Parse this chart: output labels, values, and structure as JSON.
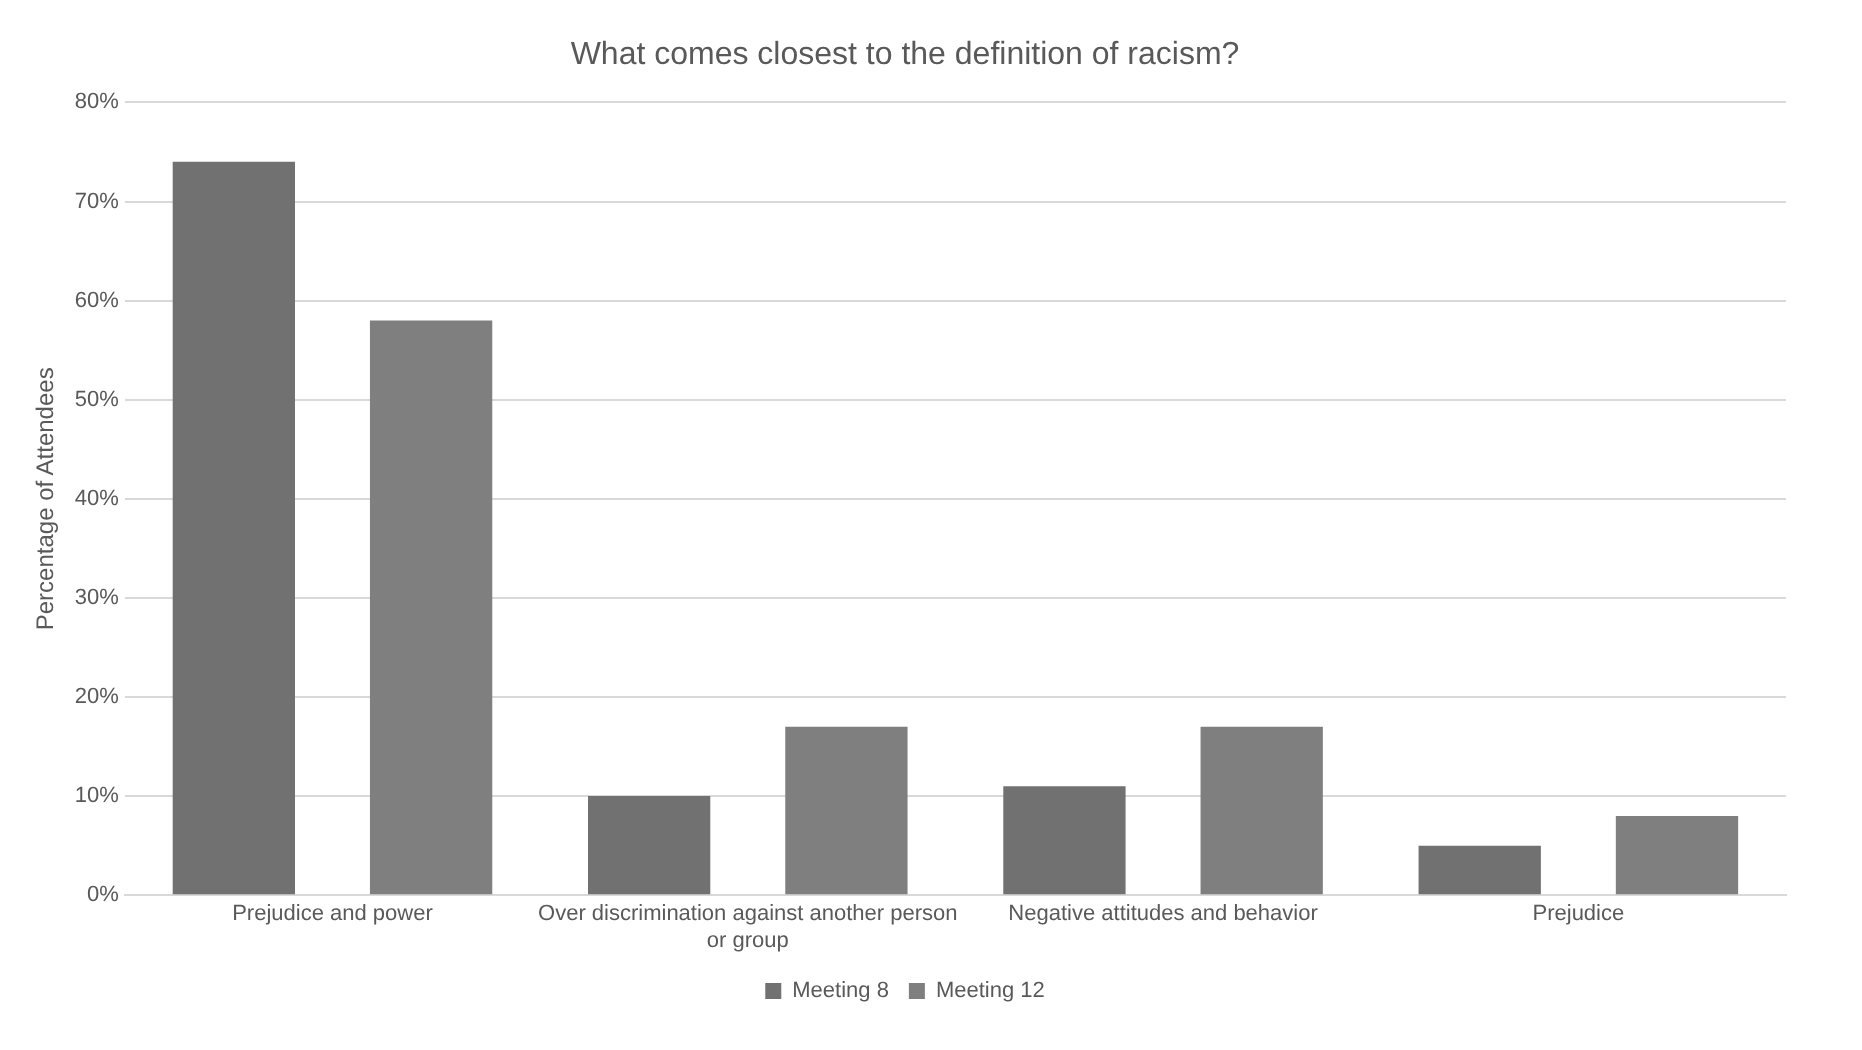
{
  "chart_data": {
    "type": "bar",
    "title": "What comes closest to the definition of racism?",
    "ylabel": "Percentage of Attendees",
    "categories": [
      "Prejudice and power",
      "Over discrimination against another person or group",
      "Negative attitudes and behavior",
      "Prejudice"
    ],
    "series": [
      {
        "name": "Meeting 8",
        "color": "#717171",
        "values": [
          74,
          10,
          11,
          5
        ]
      },
      {
        "name": "Meeting 12",
        "color": "#7f7f7f",
        "values": [
          58,
          17,
          17,
          8
        ]
      }
    ],
    "ylim": [
      0,
      80
    ],
    "yticks": [
      {
        "value": 0,
        "label": "0%"
      },
      {
        "value": 10,
        "label": "10%"
      },
      {
        "value": 20,
        "label": "20%"
      },
      {
        "value": 30,
        "label": "30%"
      },
      {
        "value": 40,
        "label": "40%"
      },
      {
        "value": 50,
        "label": "50%"
      },
      {
        "value": 60,
        "label": "60%"
      },
      {
        "value": 70,
        "label": "70%"
      },
      {
        "value": 80,
        "label": "80%"
      }
    ],
    "grid": "y",
    "legend": "bottom"
  }
}
